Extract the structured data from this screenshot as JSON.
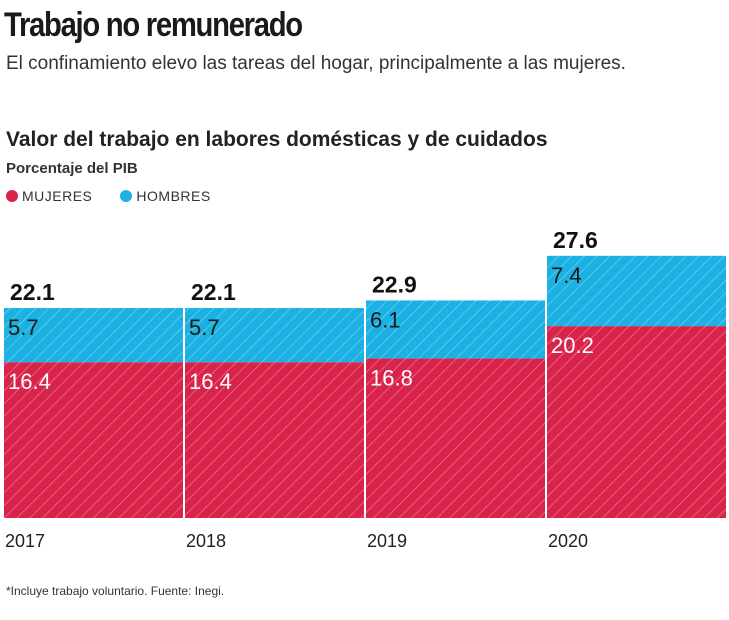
{
  "header": {
    "title": "Trabajo no remunerado",
    "subtitle": "El confinamiento elevo las tareas del hogar, principalmente a las mujeres."
  },
  "chart_data": {
    "type": "bar",
    "stacked": true,
    "title": "Valor del trabajo en labores domésticas y de cuidados",
    "ylabel": "Porcentaje del PIB",
    "categories": [
      "2017",
      "2018",
      "2019",
      "2020"
    ],
    "series": [
      {
        "name": "MUJERES",
        "values": [
          16.4,
          16.4,
          16.8,
          20.2
        ],
        "color": "#d9234b"
      },
      {
        "name": "HOMBRES",
        "values": [
          5.7,
          5.7,
          6.1,
          7.4
        ],
        "color": "#1bb1e3"
      }
    ],
    "totals": [
      "22.1",
      "22.1",
      "22.9",
      "27.6"
    ],
    "value_labels": {
      "MUJERES": [
        "16.4",
        "16.4",
        "16.8",
        "20.2"
      ],
      "HOMBRES": [
        "5.7",
        "5.7",
        "6.1",
        "7.4"
      ]
    },
    "ylim": [
      0,
      30
    ],
    "grid": false,
    "legend": "top-left",
    "pattern": "diagonal-hatch"
  },
  "footnote": "*Incluye trabajo voluntario. Fuente: Inegi."
}
